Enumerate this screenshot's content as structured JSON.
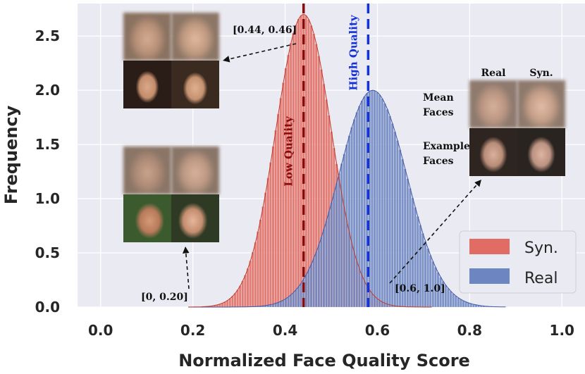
{
  "chart_data": {
    "type": "histogram",
    "xlabel": "Normalized Face Quality Score",
    "ylabel": "Frequency",
    "xlim": [
      -0.05,
      1.05
    ],
    "ylim": [
      0,
      2.8
    ],
    "xticks": [
      "0.0",
      "0.2",
      "0.4",
      "0.6",
      "0.8",
      "1.0"
    ],
    "yticks": [
      "0.0",
      "0.5",
      "1.0",
      "1.5",
      "2.0",
      "2.5"
    ],
    "grid": true,
    "background_color": "#eaeaf2",
    "legend_position": "lower-right",
    "series": [
      {
        "name": "Syn.",
        "color": "#e06c63",
        "distribution": "normal",
        "mean": 0.44,
        "std": 0.06,
        "peak": 2.7,
        "x_range": [
          0.19,
          0.72
        ]
      },
      {
        "name": "Real",
        "color": "#6d86c2",
        "distribution": "normal",
        "mean": 0.59,
        "std": 0.074,
        "peak": 2.0,
        "x_range": [
          0.19,
          0.88
        ]
      }
    ],
    "vlines": [
      {
        "x": 0.44,
        "label": "Low Quality",
        "color": "#8b0a0a"
      },
      {
        "x": 0.58,
        "label": "High Quality",
        "color": "#1532d6"
      }
    ],
    "annotations": [
      {
        "text": "[0.44, 0.46]"
      },
      {
        "text": "[0, 0.20]"
      },
      {
        "text": "[0.6, 1.0]"
      }
    ],
    "inset_labels": {
      "col_real": "Real",
      "col_syn": "Syn.",
      "mean_1": "Mean",
      "mean_2": "Faces",
      "example_1": "Example",
      "example_2": "Faces"
    }
  }
}
